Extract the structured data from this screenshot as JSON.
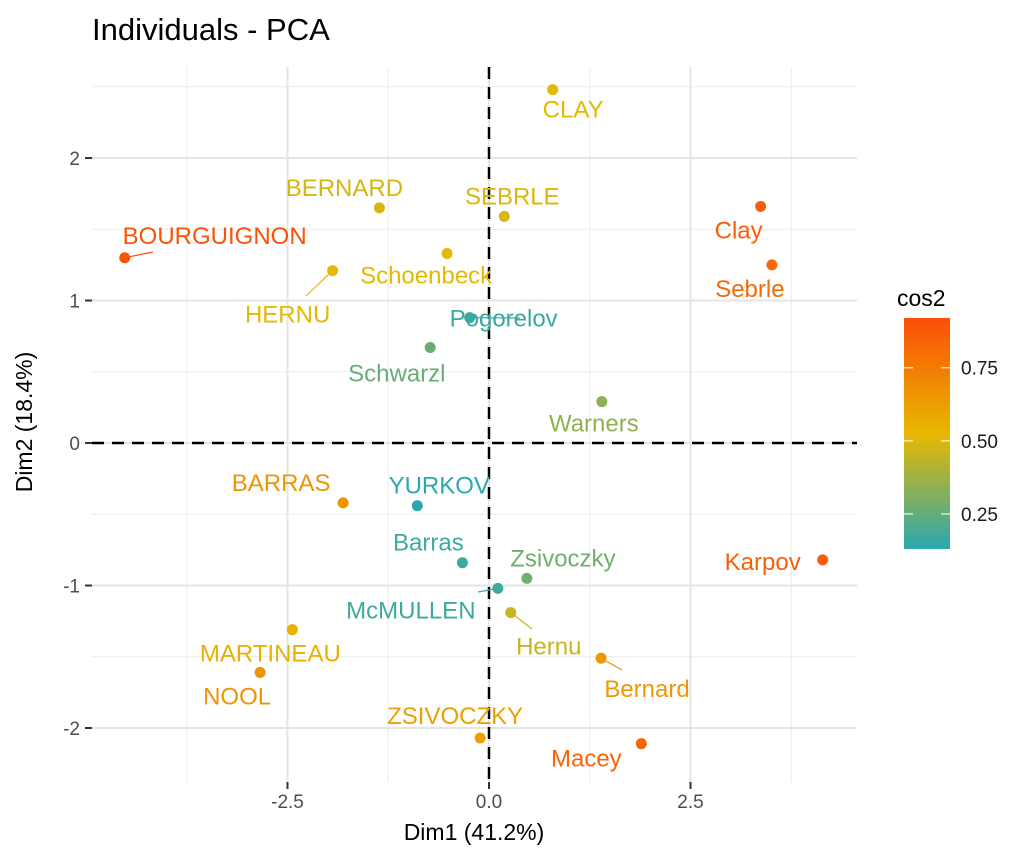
{
  "chart_data": {
    "type": "scatter",
    "title": "Individuals - PCA",
    "xlabel": "Dim1 (41.2%)",
    "ylabel": "Dim2 (18.4%)",
    "xlim": [
      -4.9,
      4.6
    ],
    "ylim": [
      -2.4,
      2.6
    ],
    "x_ticks": [
      -2.5,
      0.0,
      2.5
    ],
    "x_tick_labels": [
      "-2.5",
      "0.0",
      "2.5"
    ],
    "y_ticks": [
      -2,
      -1,
      0,
      1,
      2
    ],
    "y_tick_labels": [
      "-2",
      "-1",
      "0",
      "1",
      "2"
    ],
    "grid": true,
    "reference_lines": {
      "x": 0,
      "y": 0,
      "style": "dashed"
    },
    "color_legend": {
      "title": "cos2",
      "position": "right",
      "range": [
        0.13,
        0.92
      ],
      "ticks": [
        0.25,
        0.5,
        0.75
      ],
      "tick_labels": [
        "0.25",
        "0.50",
        "0.75"
      ],
      "gradient": [
        "#2AA8B0",
        "#E7B800",
        "#FC4E07"
      ]
    },
    "points": [
      {
        "name": "CLAY",
        "x": 0.79,
        "y": 2.48,
        "cos2": 0.52
      },
      {
        "name": "BERNARD",
        "x": -1.36,
        "y": 1.65,
        "cos2": 0.49
      },
      {
        "name": "SEBRLE",
        "x": 0.19,
        "y": 1.59,
        "cos2": 0.5
      },
      {
        "name": "BOURGUIGNON",
        "x": -4.52,
        "y": 1.3,
        "cos2": 0.9
      },
      {
        "name": "Schoenbeck",
        "x": -0.52,
        "y": 1.33,
        "cos2": 0.52
      },
      {
        "name": "HERNU",
        "x": -1.94,
        "y": 1.21,
        "cos2": 0.52
      },
      {
        "name": "Pogorelov",
        "x": -0.24,
        "y": 0.88,
        "cos2": 0.16
      },
      {
        "name": "Schwarzl",
        "x": -0.73,
        "y": 0.67,
        "cos2": 0.26
      },
      {
        "name": "Clay",
        "x": 3.37,
        "y": 1.66,
        "cos2": 0.86
      },
      {
        "name": "Sebrle",
        "x": 3.51,
        "y": 1.25,
        "cos2": 0.82
      },
      {
        "name": "Warners",
        "x": 1.4,
        "y": 0.29,
        "cos2": 0.34
      },
      {
        "name": "BARRAS",
        "x": -1.81,
        "y": -0.42,
        "cos2": 0.66
      },
      {
        "name": "YURKOV",
        "x": -0.89,
        "y": -0.44,
        "cos2": 0.13
      },
      {
        "name": "Barras",
        "x": -0.33,
        "y": -0.84,
        "cos2": 0.17
      },
      {
        "name": "Zsivoczky",
        "x": 0.47,
        "y": -0.95,
        "cos2": 0.28
      },
      {
        "name": "McMULLEN",
        "x": 0.11,
        "y": -1.02,
        "cos2": 0.17
      },
      {
        "name": "Hernu",
        "x": 0.27,
        "y": -1.19,
        "cos2": 0.46
      },
      {
        "name": "Bernard",
        "x": 1.39,
        "y": -1.51,
        "cos2": 0.64
      },
      {
        "name": "Karpov",
        "x": 4.14,
        "y": -0.82,
        "cos2": 0.86
      },
      {
        "name": "MARTINEAU",
        "x": -2.44,
        "y": -1.31,
        "cos2": 0.55
      },
      {
        "name": "NOOL",
        "x": -2.84,
        "y": -1.61,
        "cos2": 0.66
      },
      {
        "name": "ZSIVOCZKY",
        "x": -0.11,
        "y": -2.07,
        "cos2": 0.62
      },
      {
        "name": "Macey",
        "x": 1.89,
        "y": -2.11,
        "cos2": 0.84
      }
    ]
  }
}
